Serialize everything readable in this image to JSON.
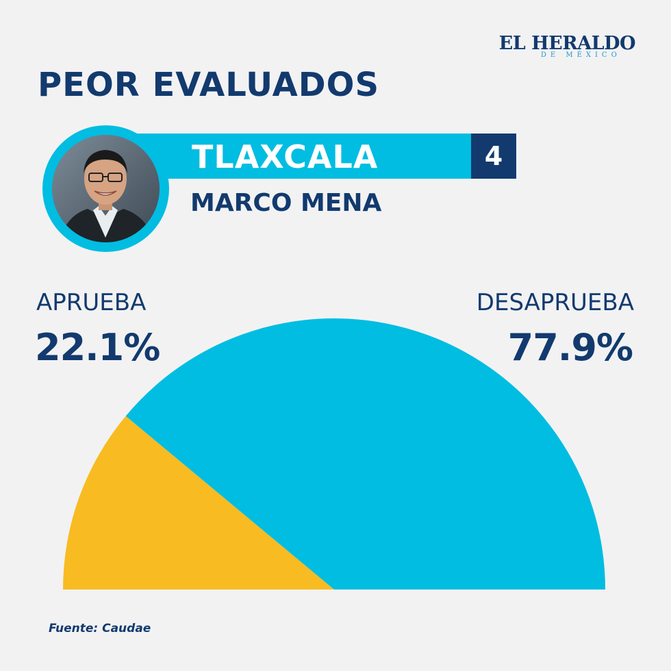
{
  "brand": {
    "name": "EL HERALDO",
    "subtitle": "DE MÉXICO"
  },
  "headline": "PEOR EVALUADOS",
  "governor": {
    "state": "TLAXCALA",
    "rank": "4",
    "name": "MARCO MENA"
  },
  "chart_data": {
    "type": "pie",
    "shape": "half-donut-gauge",
    "slices": [
      {
        "label": "APRUEBA",
        "value": 22.1,
        "display": "22.1%",
        "color": "#f8bb22"
      },
      {
        "label": "DESAPRUEBA",
        "value": 77.9,
        "display": "77.9%",
        "color": "#00bde1"
      }
    ],
    "start_side": "left",
    "legend": "top-corners"
  },
  "source": "Fuente: Caudae",
  "colors": {
    "navy": "#123a6e",
    "cyan": "#00bde1",
    "yellow": "#f8bb22",
    "background": "#f2f2f3"
  }
}
